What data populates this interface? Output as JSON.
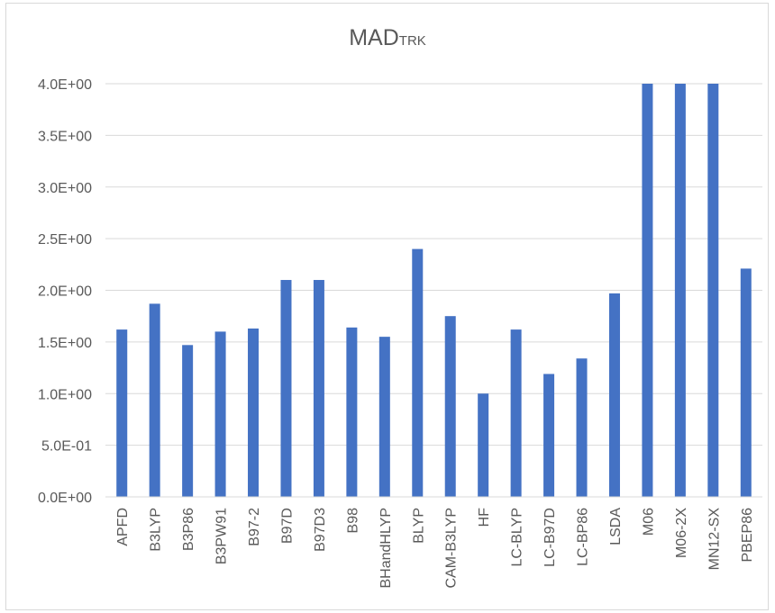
{
  "chart_data": {
    "type": "bar",
    "title": "MAD",
    "title_subscript": "TRK",
    "xlabel": "",
    "ylabel": "",
    "ylim": [
      0,
      4.0
    ],
    "yticks": [
      "0.0E+00",
      "5.0E-01",
      "1.0E+00",
      "1.5E+00",
      "2.0E+00",
      "2.5E+00",
      "3.0E+00",
      "3.5E+00",
      "4.0E+00"
    ],
    "ytick_values": [
      0,
      0.5,
      1.0,
      1.5,
      2.0,
      2.5,
      3.0,
      3.5,
      4.0
    ],
    "categories": [
      "APFD",
      "B3LYP",
      "B3P86",
      "B3PW91",
      "B97-2",
      "B97D",
      "B97D3",
      "B98",
      "BHandHLYP",
      "BLYP",
      "CAM-B3LYP",
      "HF",
      "LC-BLYP",
      "LC-B97D",
      "LC-BP86",
      "LSDA",
      "M06",
      "M06-2X",
      "MN12-SX",
      "PBEP86"
    ],
    "values": [
      1.62,
      1.87,
      1.47,
      1.6,
      1.63,
      2.1,
      2.1,
      1.64,
      1.55,
      2.4,
      1.75,
      1.0,
      1.62,
      1.19,
      1.34,
      1.97,
      4.0,
      4.0,
      4.0,
      2.21
    ],
    "grid": true,
    "legend": "none",
    "bar_color": "#4472C4",
    "grid_color": "#d9d9d9"
  }
}
